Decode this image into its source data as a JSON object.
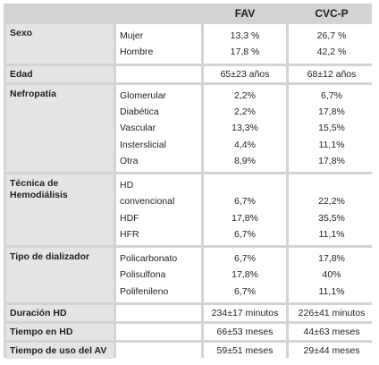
{
  "header": {
    "col_fav": "FAV",
    "col_cvcp": "CVC-P"
  },
  "rows": {
    "sexo": {
      "label": "Sexo",
      "subs": [
        "Mujer",
        "Hombre"
      ],
      "fav": [
        "13,3 %",
        "17,8 %"
      ],
      "cvc": [
        "26,7 %",
        "42,2 %"
      ]
    },
    "edad": {
      "label": "Edad",
      "fav": "65±23 años",
      "cvc": "68±12 años"
    },
    "nefropatia": {
      "label": "Nefropatía",
      "subs": [
        "Glomerular",
        "Diabética",
        "Vascular",
        "Insterslicial",
        "Otra"
      ],
      "fav": [
        "2,2%",
        "2,2%",
        "13,3%",
        "4,4%",
        "8,9%"
      ],
      "cvc": [
        "6,7%",
        "17,8%",
        "15,5%",
        "11,1%",
        "17,8%"
      ]
    },
    "tecnica": {
      "label1": "Técnica de",
      "label2": "Hemodiálisis",
      "subs": [
        "HD",
        "convencional",
        "HDF",
        "HFR"
      ],
      "fav": [
        "",
        "6,7%",
        "17,8%",
        "6,7%"
      ],
      "cvc": [
        "",
        "22,2%",
        "35,5%",
        "11,1%"
      ]
    },
    "dializador": {
      "label": "Tipo de dializador",
      "subs": [
        "Policarbonato",
        "Polisulfona",
        "Polifenileno"
      ],
      "fav": [
        "6,7%",
        "17,8%",
        "6,7%"
      ],
      "cvc": [
        "17,8%",
        "40%",
        "11,1%"
      ]
    },
    "duracion": {
      "label": "Duración HD",
      "fav": "234±17 minutos",
      "cvc": "226±41 minutos"
    },
    "tiempo_hd": {
      "label": "Tiempo en HD",
      "fav": "66±53 meses",
      "cvc": "44±63 meses"
    },
    "tiempo_av": {
      "label": "Tiempo de uso del AV",
      "fav": "59±51 meses",
      "cvc": "29±44 meses"
    }
  }
}
